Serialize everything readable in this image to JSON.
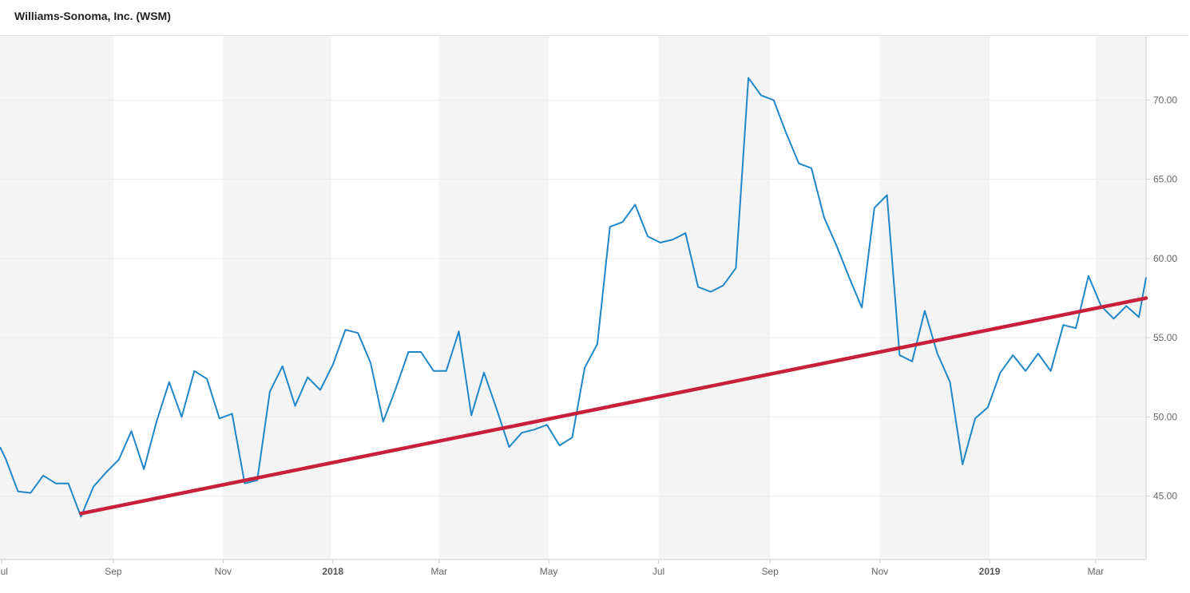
{
  "header": {
    "title": "Williams-Sonoma, Inc. (WSM)"
  },
  "chart_data": {
    "type": "line",
    "title": "Williams-Sonoma, Inc. (WSM)",
    "xlabel": "",
    "ylabel": "",
    "ylim": [
      41,
      74
    ],
    "xlim": [
      "2017-06-30",
      "2019-03-29"
    ],
    "grid": true,
    "x_tick_labels": [
      {
        "label": "Jul",
        "date": "2017-07-01",
        "bold": false
      },
      {
        "label": "Sep",
        "date": "2017-09-01",
        "bold": false
      },
      {
        "label": "Nov",
        "date": "2017-11-01",
        "bold": false
      },
      {
        "label": "2018",
        "date": "2018-01-01",
        "bold": true
      },
      {
        "label": "Mar",
        "date": "2018-03-01",
        "bold": false
      },
      {
        "label": "May",
        "date": "2018-05-01",
        "bold": false
      },
      {
        "label": "Jul",
        "date": "2018-07-01",
        "bold": false
      },
      {
        "label": "Sep",
        "date": "2018-09-01",
        "bold": false
      },
      {
        "label": "Nov",
        "date": "2018-11-01",
        "bold": false
      },
      {
        "label": "2019",
        "date": "2019-01-01",
        "bold": true
      },
      {
        "label": "Mar",
        "date": "2019-03-01",
        "bold": false
      }
    ],
    "y_tick_labels": [
      "45.00",
      "50.00",
      "55.00",
      "60.00",
      "65.00",
      "70.00"
    ],
    "y_ticks": [
      45,
      50,
      55,
      60,
      65,
      70
    ],
    "shaded_bands": [
      {
        "from": "2017-06-30",
        "to": "2017-09-01"
      },
      {
        "from": "2017-11-01",
        "to": "2017-12-31"
      },
      {
        "from": "2018-03-01",
        "to": "2018-05-01"
      },
      {
        "from": "2018-07-01",
        "to": "2018-09-01"
      },
      {
        "from": "2018-11-01",
        "to": "2019-01-01"
      },
      {
        "from": "2019-03-01",
        "to": "2019-03-29"
      }
    ],
    "series": [
      {
        "color": "#1f86c8",
        "points": [
          [
            "2017-06-30",
            48.1
          ],
          [
            "2017-07-03",
            47.4
          ],
          [
            "2017-07-10",
            45.3
          ],
          [
            "2017-07-17",
            45.2
          ],
          [
            "2017-07-24",
            46.3
          ],
          [
            "2017-07-31",
            45.8
          ],
          [
            "2017-08-07",
            45.8
          ],
          [
            "2017-08-14",
            43.7
          ],
          [
            "2017-08-21",
            45.6
          ],
          [
            "2017-08-28",
            46.5
          ],
          [
            "2017-09-04",
            47.3
          ],
          [
            "2017-09-11",
            49.1
          ],
          [
            "2017-09-18",
            46.7
          ],
          [
            "2017-09-25",
            49.7
          ],
          [
            "2017-10-02",
            52.2
          ],
          [
            "2017-10-09",
            50.0
          ],
          [
            "2017-10-16",
            52.9
          ],
          [
            "2017-10-23",
            52.4
          ],
          [
            "2017-10-30",
            49.9
          ],
          [
            "2017-11-06",
            50.2
          ],
          [
            "2017-11-13",
            45.8
          ],
          [
            "2017-11-20",
            46.0
          ],
          [
            "2017-11-27",
            51.6
          ],
          [
            "2017-12-04",
            53.2
          ],
          [
            "2017-12-11",
            50.7
          ],
          [
            "2017-12-18",
            52.5
          ],
          [
            "2017-12-25",
            51.7
          ],
          [
            "2018-01-01",
            53.3
          ],
          [
            "2018-01-08",
            55.5
          ],
          [
            "2018-01-15",
            55.3
          ],
          [
            "2018-01-22",
            53.4
          ],
          [
            "2018-01-29",
            49.7
          ],
          [
            "2018-02-05",
            51.8
          ],
          [
            "2018-02-12",
            54.1
          ],
          [
            "2018-02-19",
            54.1
          ],
          [
            "2018-02-26",
            52.9
          ],
          [
            "2018-03-05",
            52.9
          ],
          [
            "2018-03-12",
            55.4
          ],
          [
            "2018-03-19",
            50.1
          ],
          [
            "2018-03-26",
            52.8
          ],
          [
            "2018-04-02",
            50.5
          ],
          [
            "2018-04-09",
            48.1
          ],
          [
            "2018-04-16",
            49.0
          ],
          [
            "2018-04-23",
            49.2
          ],
          [
            "2018-04-30",
            49.5
          ],
          [
            "2018-05-07",
            48.2
          ],
          [
            "2018-05-14",
            48.7
          ],
          [
            "2018-05-21",
            53.1
          ],
          [
            "2018-05-28",
            54.6
          ],
          [
            "2018-06-04",
            62.0
          ],
          [
            "2018-06-11",
            62.3
          ],
          [
            "2018-06-18",
            63.4
          ],
          [
            "2018-06-25",
            61.4
          ],
          [
            "2018-07-02",
            61.0
          ],
          [
            "2018-07-09",
            61.2
          ],
          [
            "2018-07-16",
            61.6
          ],
          [
            "2018-07-23",
            58.2
          ],
          [
            "2018-07-30",
            57.9
          ],
          [
            "2018-08-06",
            58.3
          ],
          [
            "2018-08-13",
            59.4
          ],
          [
            "2018-08-20",
            71.4
          ],
          [
            "2018-08-27",
            70.3
          ],
          [
            "2018-09-03",
            70.0
          ],
          [
            "2018-09-10",
            67.9
          ],
          [
            "2018-09-17",
            66.0
          ],
          [
            "2018-09-24",
            65.7
          ],
          [
            "2018-10-01",
            62.6
          ],
          [
            "2018-10-08",
            60.8
          ],
          [
            "2018-10-15",
            58.8
          ],
          [
            "2018-10-22",
            56.9
          ],
          [
            "2018-10-29",
            63.2
          ],
          [
            "2018-11-05",
            64.0
          ],
          [
            "2018-11-12",
            53.9
          ],
          [
            "2018-11-19",
            53.5
          ],
          [
            "2018-11-26",
            56.7
          ],
          [
            "2018-12-03",
            54.0
          ],
          [
            "2018-12-10",
            52.2
          ],
          [
            "2018-12-17",
            47.0
          ],
          [
            "2018-12-24",
            49.9
          ],
          [
            "2018-12-31",
            50.6
          ],
          [
            "2019-01-07",
            52.8
          ],
          [
            "2019-01-14",
            53.9
          ],
          [
            "2019-01-21",
            52.9
          ],
          [
            "2019-01-28",
            54.0
          ],
          [
            "2019-02-04",
            52.9
          ],
          [
            "2019-02-11",
            55.8
          ],
          [
            "2019-02-18",
            55.6
          ],
          [
            "2019-02-25",
            58.9
          ],
          [
            "2019-03-04",
            57.0
          ],
          [
            "2019-03-11",
            56.2
          ],
          [
            "2019-03-18",
            57.0
          ],
          [
            "2019-03-25",
            56.3
          ],
          [
            "2019-03-29",
            58.8
          ]
        ]
      }
    ],
    "annotations": [
      {
        "type": "trendline",
        "color": "#c8203a",
        "from": [
          "2017-08-14",
          43.9
        ],
        "to": [
          "2019-03-29",
          57.5
        ]
      }
    ]
  }
}
